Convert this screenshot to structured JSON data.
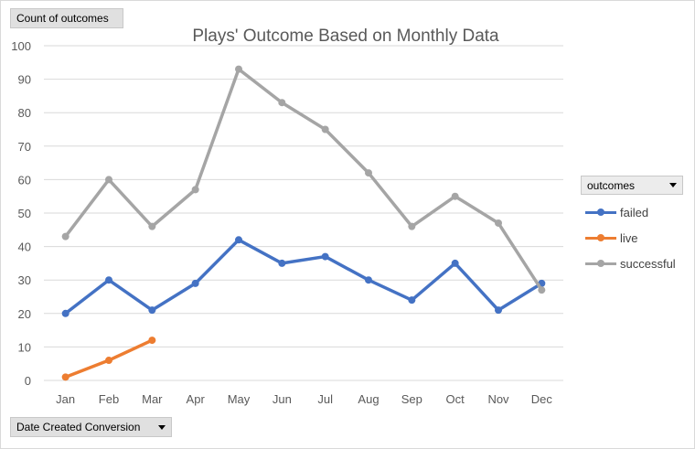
{
  "chart_data": {
    "type": "line",
    "title": "Plays' Outcome Based on Monthly Data",
    "xlabel": "Date Created Conversion",
    "ylabel": "Count of outcomes",
    "categories": [
      "Jan",
      "Feb",
      "Mar",
      "Apr",
      "May",
      "Jun",
      "Jul",
      "Aug",
      "Sep",
      "Oct",
      "Nov",
      "Dec"
    ],
    "ylim": [
      0,
      100
    ],
    "yticks": [
      0,
      10,
      20,
      30,
      40,
      50,
      60,
      70,
      80,
      90,
      100
    ],
    "grid": true,
    "legend_title": "outcomes",
    "legend_position": "right",
    "series": [
      {
        "name": "failed",
        "color": "#4472C4",
        "values": [
          20,
          30,
          21,
          29,
          42,
          35,
          37,
          30,
          24,
          35,
          21,
          29
        ]
      },
      {
        "name": "live",
        "color": "#ED7D31",
        "values": [
          1,
          6,
          12,
          null,
          null,
          null,
          null,
          null,
          null,
          null,
          null,
          null
        ]
      },
      {
        "name": "successful",
        "color": "#A5A5A5",
        "values": [
          43,
          60,
          46,
          57,
          93,
          83,
          75,
          62,
          46,
          55,
          47,
          27
        ]
      }
    ]
  }
}
